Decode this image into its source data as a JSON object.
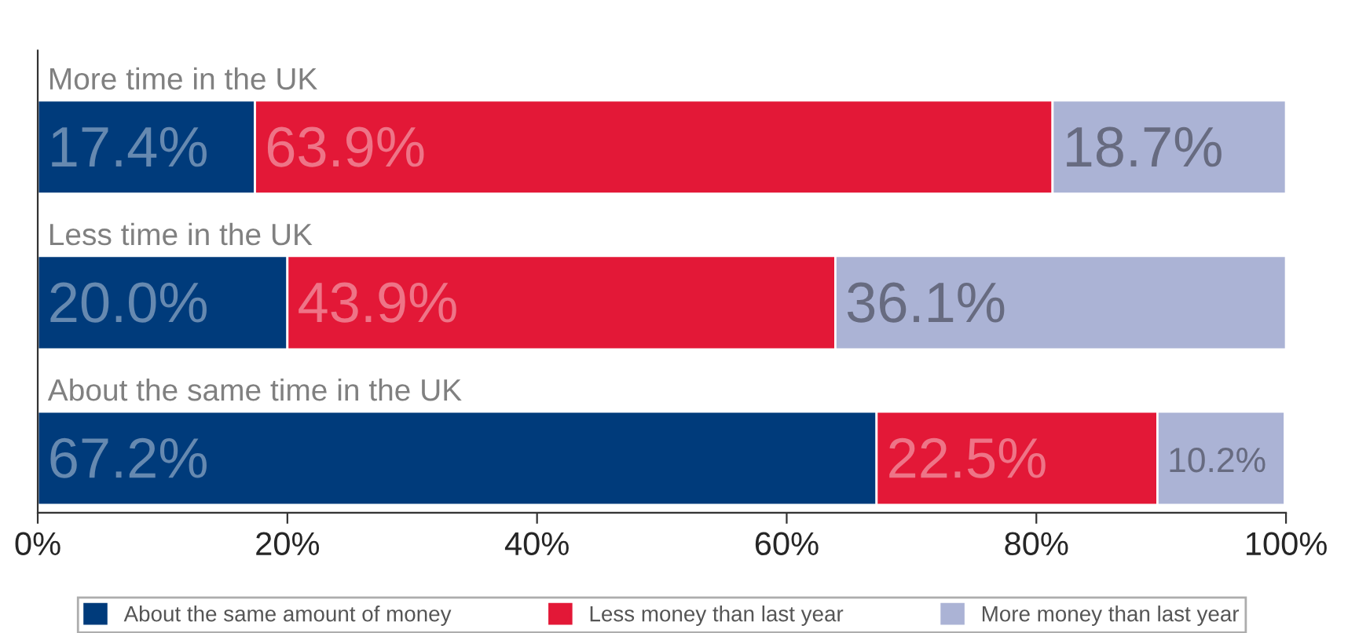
{
  "chart_data": {
    "type": "bar",
    "orientation": "horizontal",
    "stacked": true,
    "categories": [
      "More time in the UK",
      "Less time in the UK",
      "About the same time in the UK"
    ],
    "series": [
      {
        "name": "About the same amount of money",
        "color": "#003b7b",
        "values": [
          17.4,
          20.0,
          67.2
        ],
        "value_labels": [
          "17.4%",
          "20.0%",
          "67.2%"
        ]
      },
      {
        "name": "Less money than last year",
        "color": "#e31837",
        "values": [
          63.9,
          43.9,
          22.5
        ],
        "value_labels": [
          "63.9%",
          "43.9%",
          "22.5%"
        ]
      },
      {
        "name": "More money than last year",
        "color": "#abb3d5",
        "values": [
          18.7,
          36.1,
          10.2
        ],
        "value_labels": [
          "18.7%",
          "36.1%",
          "10.2%"
        ]
      }
    ],
    "xlim": [
      0,
      100
    ],
    "xticks": [
      {
        "value": 0,
        "label": "0%"
      },
      {
        "value": 20,
        "label": "20%"
      },
      {
        "value": 40,
        "label": "40%"
      },
      {
        "value": 60,
        "label": "60%"
      },
      {
        "value": 80,
        "label": "80%"
      },
      {
        "value": 100,
        "label": "100%"
      }
    ],
    "legend": "bottom",
    "grid": false
  }
}
